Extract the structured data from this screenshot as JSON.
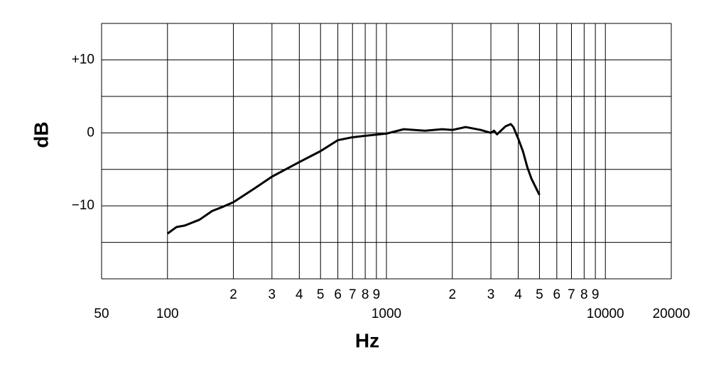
{
  "chart_data": {
    "type": "line",
    "x_label": "Hz",
    "y_label": "dB",
    "log_x": true,
    "x": [
      100,
      110,
      120,
      140,
      160,
      180,
      200,
      250,
      300,
      400,
      500,
      600,
      700,
      800,
      1000,
      1200,
      1500,
      1800,
      2000,
      2300,
      2700,
      3000,
      3100,
      3200,
      3500,
      3700,
      3800,
      4000,
      4200,
      4400,
      4600,
      5000
    ],
    "series": [
      {
        "color": "#000000",
        "values": [
          -13.8,
          -12.9,
          -12.7,
          -11.9,
          -10.7,
          -10.1,
          -9.5,
          -7.6,
          -6.0,
          -4.0,
          -2.5,
          -1.0,
          -0.6,
          -0.4,
          -0.1,
          0.5,
          0.3,
          0.5,
          0.4,
          0.8,
          0.4,
          0.0,
          0.3,
          -0.2,
          0.9,
          1.2,
          0.8,
          -0.8,
          -2.5,
          -4.7,
          -6.3,
          -8.5
        ]
      }
    ],
    "xlim": [
      50,
      20000
    ],
    "ylim": [
      -20,
      15
    ],
    "xticks": [
      50,
      100,
      1000,
      10000,
      20000
    ],
    "xminor_ticks": [
      {
        "value": 200,
        "label": "2"
      },
      {
        "value": 300,
        "label": "3"
      },
      {
        "value": 400,
        "label": "4"
      },
      {
        "value": 500,
        "label": "5"
      },
      {
        "value": 600,
        "label": "6"
      },
      {
        "value": 700,
        "label": "7"
      },
      {
        "value": 800,
        "label": "8"
      },
      {
        "value": 900,
        "label": "9"
      },
      {
        "value": 2000,
        "label": "2"
      },
      {
        "value": 3000,
        "label": "3"
      },
      {
        "value": 4000,
        "label": "4"
      },
      {
        "value": 5000,
        "label": "5"
      },
      {
        "value": 6000,
        "label": "6"
      },
      {
        "value": 7000,
        "label": "7"
      },
      {
        "value": 8000,
        "label": "8"
      },
      {
        "value": 9000,
        "label": "9"
      }
    ],
    "yticks": [
      {
        "value": 10,
        "label": "+10"
      },
      0,
      {
        "value": -10,
        "label": "−10"
      }
    ],
    "ygrid": [
      -20,
      -15,
      -10,
      -5,
      0,
      5,
      10,
      15
    ],
    "grid": true
  }
}
